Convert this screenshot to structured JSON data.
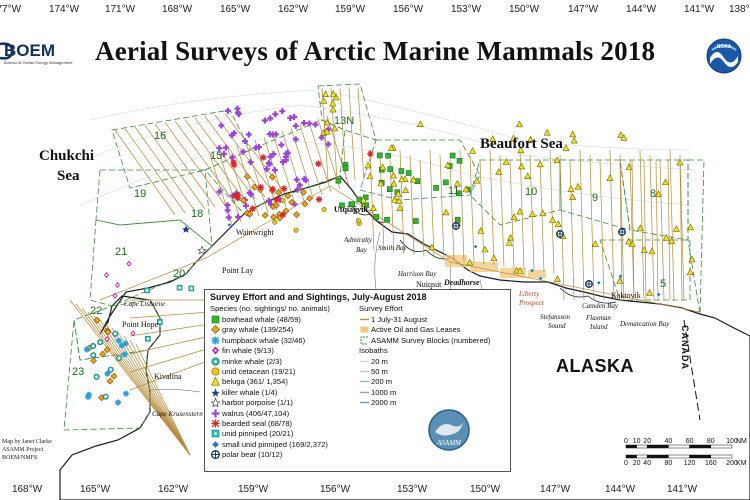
{
  "title": "Aerial Surveys of Arctic Marine Mammals 2018",
  "agency_left": {
    "name": "BOEM",
    "sub": "Bureau of Ocean Energy Management"
  },
  "agency_right": {
    "name": "NOAA"
  },
  "longitude_top": [
    "177°W",
    "174°W",
    "171°W",
    "168°W",
    "165°W",
    "162°W",
    "159°W",
    "156°W",
    "153°W",
    "150°W",
    "147°W",
    "144°W",
    "141°W",
    "138°W"
  ],
  "longitude_bottom": [
    "168°W",
    "165°W",
    "162°W",
    "159°W",
    "156°W",
    "153°W",
    "150°W",
    "147°W",
    "144°W",
    "141°W"
  ],
  "seas": {
    "chukchi_1": "Chukchi",
    "chukchi_2": "Sea",
    "beaufort": "Beaufort Sea"
  },
  "land": {
    "alaska": "ALASKA",
    "canada": "CANADA"
  },
  "places": {
    "wainwright": "Wainwright",
    "utqiagvik": "Utqiaġvik",
    "point_lay": "Point Lay",
    "point_hope": "Point Hope",
    "cape_lisburne": "Cape Lisburne",
    "kivalina": "Kivalina",
    "cape_krusenstern": "Cape Krusenstern",
    "admiralty_bay_1": "Admiralty",
    "admiralty_bay_2": "Bay",
    "smith_bay": "Smith Bay",
    "harrison_bay": "Harrison Bay",
    "nuiqsut": "Nuiqsut",
    "deadhorse": "Deadhorse",
    "liberty_1": "Liberty",
    "liberty_2": "Prospect",
    "stefansson_1": "Stefansson",
    "stefansson_2": "Sound",
    "camden_bay": "Camden Bay",
    "flaxman_1": "Flaxman",
    "flaxman_2": "Island",
    "kaktovik": "Kaktovik",
    "demarcation_bay": "Demarcation Bay"
  },
  "blocks": [
    "16",
    "15",
    "13N",
    "19",
    "18",
    "21",
    "20",
    "22",
    "23",
    "11",
    "10",
    "9",
    "8",
    "5"
  ],
  "legend": {
    "title": "Survey Effort and and Sightings, July-August 2018",
    "species_header": "Species (no. sightings/ no. animals)",
    "species": [
      {
        "label": "bowhead whale (48/59)",
        "icon": "square",
        "color": "#2db82d"
      },
      {
        "label": "gray whale (139/254)",
        "icon": "diamond",
        "color": "#f2a21b"
      },
      {
        "label": "humpback whale (32/46)",
        "icon": "asterisk",
        "color": "#27a3d8"
      },
      {
        "label": "fin whale (9/13)",
        "icon": "pin",
        "color": "#c21a9b"
      },
      {
        "label": "minke whale (2/3)",
        "icon": "dot-ring",
        "color": "#2bb8a5"
      },
      {
        "label": "unid cetacean (19/21)",
        "icon": "circle",
        "color": "#e8c619"
      },
      {
        "label": "beluga (361/ 1,354)",
        "icon": "triangle",
        "color": "#f4e21a"
      },
      {
        "label": "killer whale (1/4)",
        "icon": "star",
        "color": "#1a3e8c"
      },
      {
        "label": "harbor porpoise (1/1)",
        "icon": "star-outline",
        "color": "#444444"
      },
      {
        "label": "walrus (406/47,104)",
        "icon": "plus",
        "color": "#9b45d6"
      },
      {
        "label": "bearded seal (68/78)",
        "icon": "burst",
        "color": "#d8262d"
      },
      {
        "label": "unid pinniped (20/21)",
        "icon": "square-dot",
        "color": "#2fc2b8"
      },
      {
        "label": "small unid pinniped (169/2,372)",
        "icon": "diamond-small",
        "color": "#1e78c8"
      },
      {
        "label": "polar bear (10/12)",
        "icon": "ring-cross",
        "color": "#0b2b5a"
      }
    ],
    "effort_header": "Survey Effort",
    "effort": [
      {
        "label": "1 July-31 August",
        "icon": "line",
        "color": "#b8893a"
      },
      {
        "label": "Active Oil and Gas Leases",
        "icon": "fill",
        "color": "#f3c77a"
      },
      {
        "label": "ASAMM Survey Blocks (numbered)",
        "icon": "bracket",
        "color": "#3c8a3c"
      }
    ],
    "isobath_header": "Isobaths",
    "isobaths": [
      "20 m",
      "50 m",
      "200 m",
      "1000 m",
      "2000 m"
    ],
    "isobath_colors": [
      "#c9d6df",
      "#b3c7d6",
      "#9db6c9",
      "#88a6c0",
      "#7395b5"
    ],
    "badge": "ASAMM"
  },
  "credit": [
    "Map by Janet Clarke",
    "ASAMM Project",
    "BOEM/NMFS"
  ],
  "scale": {
    "nm_ticks": [
      "0",
      "10",
      "20",
      "40",
      "60",
      "80",
      "100"
    ],
    "nm_unit": "NM",
    "km_ticks": [
      "0",
      "20",
      "40",
      "80",
      "120",
      "160",
      "200"
    ],
    "km_unit": "KM"
  },
  "colors": {
    "coast": "#1b1b1b",
    "land": "#ffffff",
    "water": "#ffffff",
    "trackline": "#b8893a",
    "blockline": "#3c8a3c"
  }
}
